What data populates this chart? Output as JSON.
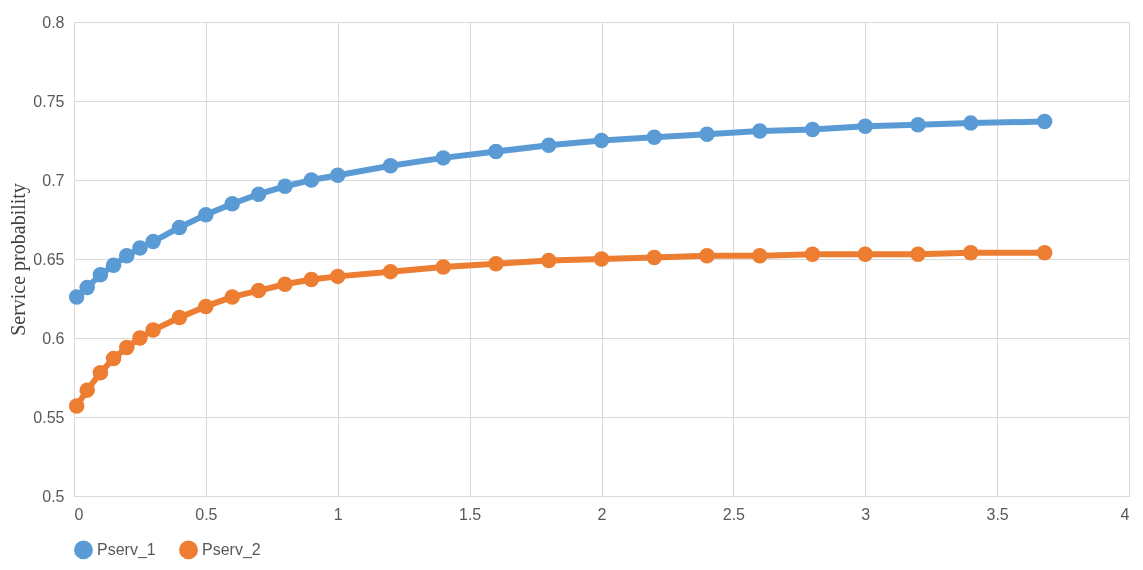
{
  "chart_data": {
    "type": "line",
    "ylabel": "Service probability",
    "x": [
      0.01,
      0.05,
      0.1,
      0.15,
      0.2,
      0.25,
      0.3,
      0.4,
      0.5,
      0.6,
      0.7,
      0.8,
      0.9,
      1,
      1.2,
      1.4,
      1.6,
      1.8,
      2,
      2.2,
      2.4,
      2.6,
      2.8,
      3,
      3.2,
      3.4,
      3.68
    ],
    "series": [
      {
        "name": "Pserv_1",
        "color": "#5b9bd5",
        "values": [
          0.626,
          0.632,
          0.64,
          0.646,
          0.652,
          0.657,
          0.661,
          0.67,
          0.678,
          0.685,
          0.691,
          0.696,
          0.7,
          0.703,
          0.709,
          0.714,
          0.718,
          0.722,
          0.725,
          0.727,
          0.729,
          0.731,
          0.732,
          0.734,
          0.735,
          0.736,
          0.737
        ]
      },
      {
        "name": "Pserv_2",
        "color": "#ed7d31",
        "values": [
          0.557,
          0.567,
          0.578,
          0.587,
          0.594,
          0.6,
          0.605,
          0.613,
          0.62,
          0.626,
          0.63,
          0.634,
          0.637,
          0.639,
          0.642,
          0.645,
          0.647,
          0.649,
          0.65,
          0.651,
          0.652,
          0.652,
          0.653,
          0.653,
          0.653,
          0.654,
          0.654
        ]
      }
    ],
    "xlim": [
      0,
      4
    ],
    "xticks": [
      0,
      0.5,
      1,
      1.5,
      2,
      2.5,
      3,
      3.5,
      4
    ],
    "ylim": [
      0.5,
      0.8
    ],
    "yticks": [
      0.5,
      0.55,
      0.6,
      0.65,
      0.7,
      0.75,
      0.8
    ],
    "grid": true,
    "legend": "bottom",
    "marker": "circle",
    "line_style": "solid"
  }
}
